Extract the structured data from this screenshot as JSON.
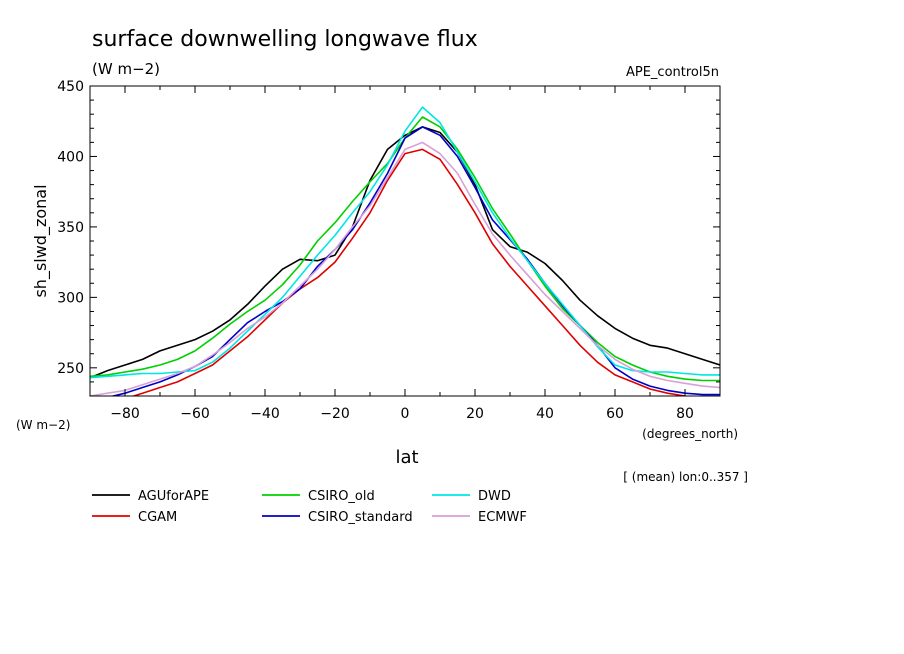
{
  "chart_data": {
    "type": "line",
    "title": "surface downwelling longwave flux",
    "units_label": "(W m−2)",
    "run_label": "APE_control5n",
    "ylabel": "sh_slwd_zonal",
    "y_units_label": "(W m−2)",
    "xlabel": "lat",
    "x_units_label": "(degrees_north)",
    "footnote": "[ (mean) lon:0..357 ]",
    "xlim": [
      -90,
      90
    ],
    "ylim": [
      230,
      450
    ],
    "xticks": [
      -80,
      -60,
      -40,
      -20,
      0,
      20,
      40,
      60,
      80
    ],
    "yticks": [
      250,
      300,
      350,
      400,
      450
    ],
    "grid": false,
    "legend_position": "bottom",
    "series": [
      {
        "name": "AGUforAPE",
        "color": "#000000",
        "points": [
          [
            -90,
            243
          ],
          [
            -85,
            248
          ],
          [
            -80,
            252
          ],
          [
            -75,
            256
          ],
          [
            -70,
            262
          ],
          [
            -65,
            266
          ],
          [
            -60,
            270
          ],
          [
            -55,
            276
          ],
          [
            -50,
            284
          ],
          [
            -45,
            295
          ],
          [
            -40,
            308
          ],
          [
            -35,
            320
          ],
          [
            -30,
            327
          ],
          [
            -25,
            326
          ],
          [
            -20,
            330
          ],
          [
            -15,
            350
          ],
          [
            -10,
            383
          ],
          [
            -5,
            405
          ],
          [
            0,
            415
          ],
          [
            5,
            421
          ],
          [
            10,
            417
          ],
          [
            15,
            403
          ],
          [
            20,
            380
          ],
          [
            25,
            348
          ],
          [
            30,
            336
          ],
          [
            35,
            332
          ],
          [
            40,
            324
          ],
          [
            45,
            312
          ],
          [
            50,
            298
          ],
          [
            55,
            287
          ],
          [
            60,
            278
          ],
          [
            65,
            271
          ],
          [
            70,
            266
          ],
          [
            75,
            264
          ],
          [
            80,
            260
          ],
          [
            85,
            256
          ],
          [
            90,
            252
          ]
        ]
      },
      {
        "name": "CGAM",
        "color": "#e00000",
        "points": [
          [
            -90,
            222
          ],
          [
            -85,
            224
          ],
          [
            -80,
            228
          ],
          [
            -75,
            232
          ],
          [
            -70,
            236
          ],
          [
            -65,
            240
          ],
          [
            -60,
            246
          ],
          [
            -55,
            252
          ],
          [
            -50,
            262
          ],
          [
            -45,
            272
          ],
          [
            -40,
            284
          ],
          [
            -35,
            296
          ],
          [
            -30,
            306
          ],
          [
            -25,
            314
          ],
          [
            -20,
            325
          ],
          [
            -15,
            342
          ],
          [
            -10,
            360
          ],
          [
            -5,
            383
          ],
          [
            0,
            402
          ],
          [
            5,
            405
          ],
          [
            10,
            398
          ],
          [
            15,
            380
          ],
          [
            20,
            360
          ],
          [
            25,
            338
          ],
          [
            30,
            322
          ],
          [
            35,
            308
          ],
          [
            40,
            294
          ],
          [
            45,
            280
          ],
          [
            50,
            266
          ],
          [
            55,
            254
          ],
          [
            60,
            245
          ],
          [
            65,
            240
          ],
          [
            70,
            235
          ],
          [
            75,
            232
          ],
          [
            80,
            230
          ],
          [
            85,
            226
          ],
          [
            90,
            226
          ]
        ]
      },
      {
        "name": "CSIRO_old",
        "color": "#00d000",
        "points": [
          [
            -90,
            244
          ],
          [
            -85,
            245
          ],
          [
            -80,
            247
          ],
          [
            -75,
            249
          ],
          [
            -70,
            252
          ],
          [
            -65,
            256
          ],
          [
            -60,
            262
          ],
          [
            -55,
            271
          ],
          [
            -50,
            281
          ],
          [
            -45,
            290
          ],
          [
            -40,
            298
          ],
          [
            -35,
            309
          ],
          [
            -30,
            323
          ],
          [
            -25,
            340
          ],
          [
            -20,
            353
          ],
          [
            -15,
            368
          ],
          [
            -10,
            382
          ],
          [
            -5,
            395
          ],
          [
            0,
            413
          ],
          [
            5,
            428
          ],
          [
            10,
            421
          ],
          [
            15,
            405
          ],
          [
            20,
            385
          ],
          [
            25,
            363
          ],
          [
            30,
            345
          ],
          [
            35,
            326
          ],
          [
            40,
            308
          ],
          [
            45,
            292
          ],
          [
            50,
            280
          ],
          [
            55,
            268
          ],
          [
            60,
            258
          ],
          [
            65,
            252
          ],
          [
            70,
            247
          ],
          [
            75,
            244
          ],
          [
            80,
            242
          ],
          [
            85,
            241
          ],
          [
            90,
            241
          ]
        ]
      },
      {
        "name": "CSIRO_standard",
        "color": "#0000c8",
        "points": [
          [
            -90,
            228
          ],
          [
            -85,
            229
          ],
          [
            -80,
            232
          ],
          [
            -75,
            236
          ],
          [
            -70,
            240
          ],
          [
            -65,
            245
          ],
          [
            -60,
            251
          ],
          [
            -55,
            258
          ],
          [
            -50,
            270
          ],
          [
            -45,
            282
          ],
          [
            -40,
            290
          ],
          [
            -35,
            297
          ],
          [
            -30,
            306
          ],
          [
            -25,
            322
          ],
          [
            -20,
            334
          ],
          [
            -15,
            348
          ],
          [
            -10,
            367
          ],
          [
            -5,
            388
          ],
          [
            0,
            413
          ],
          [
            5,
            421
          ],
          [
            10,
            415
          ],
          [
            15,
            400
          ],
          [
            20,
            378
          ],
          [
            25,
            355
          ],
          [
            30,
            341
          ],
          [
            35,
            327
          ],
          [
            40,
            310
          ],
          [
            45,
            294
          ],
          [
            50,
            280
          ],
          [
            55,
            266
          ],
          [
            60,
            250
          ],
          [
            65,
            242
          ],
          [
            70,
            237
          ],
          [
            75,
            234
          ],
          [
            80,
            232
          ],
          [
            85,
            231
          ],
          [
            90,
            231
          ]
        ]
      },
      {
        "name": "DWD",
        "color": "#00e6e6",
        "points": [
          [
            -90,
            243
          ],
          [
            -85,
            244
          ],
          [
            -80,
            245
          ],
          [
            -75,
            246
          ],
          [
            -70,
            246
          ],
          [
            -65,
            247
          ],
          [
            -60,
            248
          ],
          [
            -55,
            254
          ],
          [
            -50,
            264
          ],
          [
            -45,
            276
          ],
          [
            -40,
            288
          ],
          [
            -35,
            300
          ],
          [
            -30,
            315
          ],
          [
            -25,
            330
          ],
          [
            -20,
            344
          ],
          [
            -15,
            360
          ],
          [
            -10,
            375
          ],
          [
            -5,
            394
          ],
          [
            0,
            418
          ],
          [
            5,
            435
          ],
          [
            10,
            424
          ],
          [
            15,
            403
          ],
          [
            20,
            382
          ],
          [
            25,
            360
          ],
          [
            30,
            342
          ],
          [
            35,
            326
          ],
          [
            40,
            310
          ],
          [
            45,
            295
          ],
          [
            50,
            280
          ],
          [
            55,
            265
          ],
          [
            60,
            252
          ],
          [
            65,
            248
          ],
          [
            70,
            247
          ],
          [
            75,
            247
          ],
          [
            80,
            246
          ],
          [
            85,
            245
          ],
          [
            90,
            245
          ]
        ]
      },
      {
        "name": "ECMWF",
        "color": "#d8a0d8",
        "points": [
          [
            -90,
            230
          ],
          [
            -85,
            232
          ],
          [
            -80,
            234
          ],
          [
            -75,
            238
          ],
          [
            -70,
            242
          ],
          [
            -65,
            246
          ],
          [
            -60,
            251
          ],
          [
            -55,
            259
          ],
          [
            -50,
            268
          ],
          [
            -45,
            278
          ],
          [
            -40,
            286
          ],
          [
            -35,
            296
          ],
          [
            -30,
            308
          ],
          [
            -25,
            320
          ],
          [
            -20,
            334
          ],
          [
            -15,
            350
          ],
          [
            -10,
            365
          ],
          [
            -5,
            385
          ],
          [
            0,
            405
          ],
          [
            5,
            410
          ],
          [
            10,
            402
          ],
          [
            15,
            388
          ],
          [
            20,
            366
          ],
          [
            25,
            345
          ],
          [
            30,
            330
          ],
          [
            35,
            316
          ],
          [
            40,
            302
          ],
          [
            45,
            290
          ],
          [
            50,
            278
          ],
          [
            55,
            266
          ],
          [
            60,
            256
          ],
          [
            65,
            249
          ],
          [
            70,
            244
          ],
          [
            75,
            241
          ],
          [
            80,
            239
          ],
          [
            85,
            237
          ],
          [
            90,
            236
          ]
        ]
      }
    ]
  }
}
